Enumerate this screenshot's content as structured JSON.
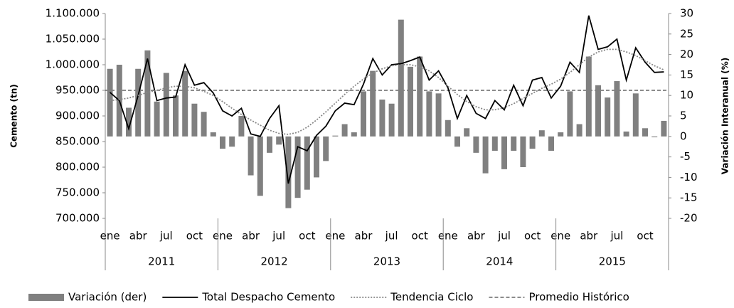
{
  "chart_data": {
    "type": "bar-line",
    "y_label": "Cemento (tn)",
    "y2_label": "Variación Interanual (%)",
    "categories": [
      "ene",
      null,
      null,
      "abr",
      null,
      null,
      "jul",
      null,
      null,
      "oct",
      null,
      null,
      "ene",
      null,
      null,
      "abr",
      null,
      null,
      "jul",
      null,
      null,
      "oct",
      null,
      null,
      "ene",
      null,
      null,
      "abr",
      null,
      null,
      "jul",
      null,
      null,
      "oct",
      null,
      null,
      "ene",
      null,
      null,
      "abr",
      null,
      null,
      "jul",
      null,
      null,
      "oct",
      null,
      null,
      "ene",
      null,
      null,
      "abr",
      null,
      null,
      "jul",
      null,
      null,
      "oct",
      null,
      null
    ],
    "groups": [
      "2011",
      "2012",
      "2013",
      "2014",
      "2015"
    ],
    "ylim": [
      700000,
      1100000
    ],
    "yticks": [
      {
        "value": 700000,
        "label": "700.000"
      },
      {
        "value": 750000,
        "label": "750.000"
      },
      {
        "value": 800000,
        "label": "800.000"
      },
      {
        "value": 850000,
        "label": "850.000"
      },
      {
        "value": 900000,
        "label": "900.000"
      },
      {
        "value": 950000,
        "label": "950.000"
      },
      {
        "value": 1000000,
        "label": "1.000.000"
      },
      {
        "value": 1050000,
        "label": "1.050.000"
      },
      {
        "value": 1100000,
        "label": "1.100.000"
      }
    ],
    "y2lim": [
      -20,
      30
    ],
    "y2ticks": [
      -20,
      -15,
      -10,
      -5,
      0,
      5,
      10,
      15,
      20,
      25,
      30
    ],
    "series": [
      {
        "name": "Variación (der)",
        "kind": "bar",
        "axis": "y2",
        "color": "#808080",
        "values": [
          16.5,
          17.5,
          7,
          16.5,
          21,
          8.5,
          15.5,
          10,
          16,
          8,
          6,
          1,
          -3,
          -2.5,
          5,
          -9.5,
          -14.5,
          -4,
          -2,
          -17.5,
          -15,
          -13,
          -10,
          -6,
          0.2,
          3,
          1,
          11,
          16,
          9,
          8,
          28.5,
          17,
          19.5,
          11,
          10.5,
          4,
          -2.5,
          2,
          -4,
          -9,
          -3.5,
          -8,
          -3.5,
          -7.5,
          -3,
          1.5,
          -3.5,
          1,
          11,
          3,
          19.5,
          12.5,
          9.5,
          13.5,
          1.2,
          10.5,
          2,
          -0.2,
          3.8
        ]
      },
      {
        "name": "Total Despacho Cemento",
        "kind": "line",
        "color": "#000000",
        "dash": "none",
        "values": [
          946000,
          930000,
          875000,
          940000,
          1012000,
          930000,
          935000,
          937000,
          1000000,
          960000,
          965000,
          945000,
          910000,
          900000,
          915000,
          865000,
          860000,
          895000,
          920000,
          768000,
          840000,
          832000,
          862000,
          880000,
          910000,
          925000,
          922000,
          962000,
          1012000,
          980000,
          1000000,
          1002000,
          1008000,
          1015000,
          970000,
          988000,
          955000,
          895000,
          940000,
          905000,
          895000,
          930000,
          912000,
          960000,
          920000,
          970000,
          975000,
          935000,
          958000,
          1005000,
          985000,
          1096000,
          1030000,
          1035000,
          1050000,
          970000,
          1033000,
          1005000,
          985000,
          986000
        ]
      },
      {
        "name": "Tendencia Ciclo",
        "kind": "line",
        "color": "#888888",
        "dash": "2 2",
        "values": [
          930000,
          932000,
          935000,
          940000,
          946000,
          950000,
          955000,
          958000,
          958000,
          955000,
          948000,
          940000,
          928000,
          915000,
          903000,
          892000,
          882000,
          872000,
          866000,
          864000,
          868000,
          878000,
          892000,
          908000,
          925000,
          942000,
          958000,
          972000,
          984000,
          992000,
          998000,
          1000000,
          1000000,
          996000,
          988000,
          975000,
          958000,
          942000,
          928000,
          918000,
          912000,
          912000,
          916000,
          924000,
          934000,
          944000,
          954000,
          962000,
          972000,
          985000,
          1000000,
          1015000,
          1025000,
          1030000,
          1030000,
          1025000,
          1018000,
          1008000,
          998000,
          990000
        ]
      }
    ],
    "reference_line": {
      "name": "Promedio Histórico",
      "value": 950000,
      "color": "#666666",
      "dash": "5 3"
    }
  }
}
